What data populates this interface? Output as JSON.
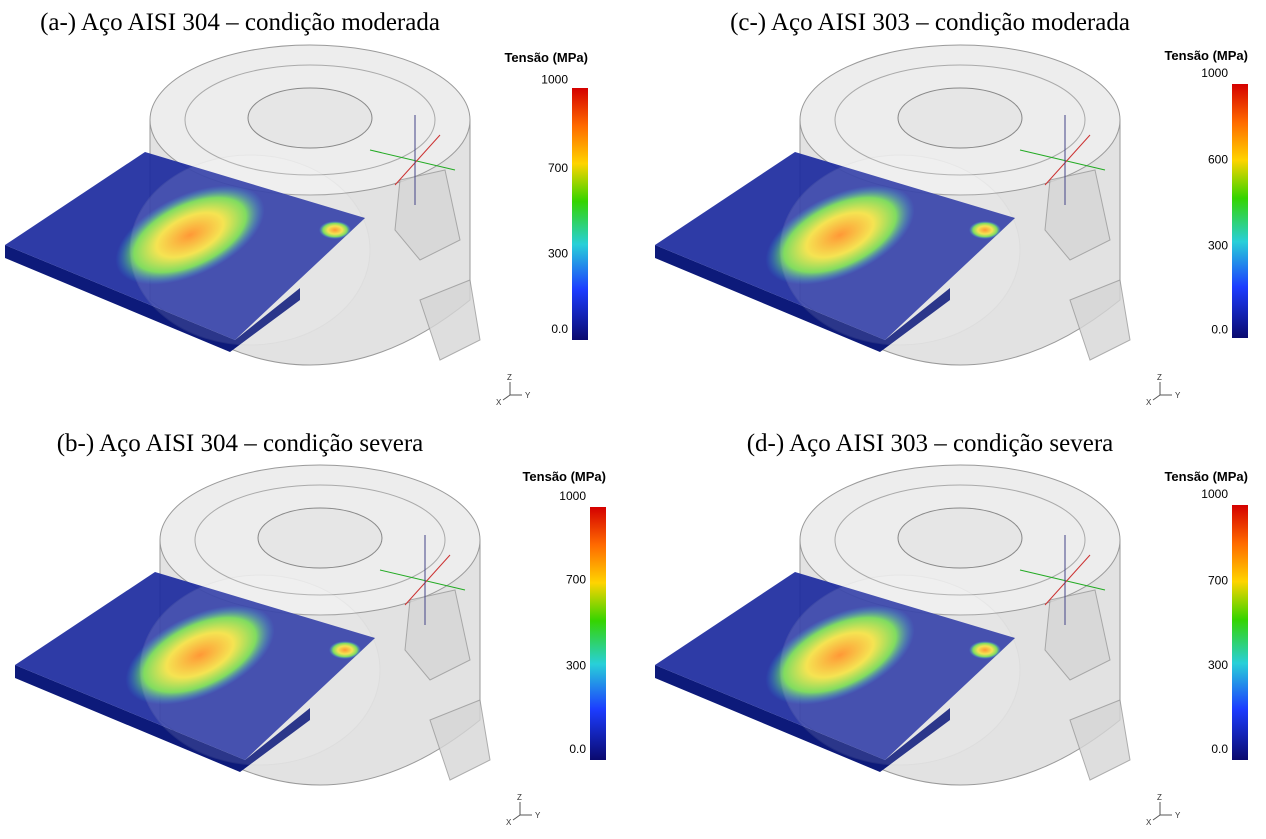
{
  "panels": [
    {
      "title": "(a-) Aço AISI 304 – condição moderada",
      "colorbar": {
        "title": "Tensão (MPa)",
        "ticks": [
          "1000",
          "700",
          "300",
          "0.0"
        ]
      },
      "axes": {
        "z": "Z",
        "x": "X",
        "y": "Y"
      }
    },
    {
      "title": "(c-) Aço AISI 303 – condição moderada",
      "colorbar": {
        "title": "Tensão (MPa)",
        "ticks": [
          "1000",
          "600",
          "300",
          "0.0"
        ]
      },
      "axes": {
        "z": "Z",
        "x": "X",
        "y": "Y"
      }
    },
    {
      "title": "(b-) Aço AISI 304 – condição severa",
      "colorbar": {
        "title": "Tensão (MPa)",
        "ticks": [
          "1000",
          "700",
          "300",
          "0.0"
        ]
      },
      "axes": {
        "z": "Z",
        "x": "X",
        "y": "Y"
      }
    },
    {
      "title": "(d-) Aço AISI 303 – condição severa",
      "colorbar": {
        "title": "Tensão (MPa)",
        "ticks": [
          "1000",
          "700",
          "300",
          "0.0"
        ]
      },
      "axes": {
        "z": "Z",
        "x": "X",
        "y": "Y"
      }
    }
  ]
}
